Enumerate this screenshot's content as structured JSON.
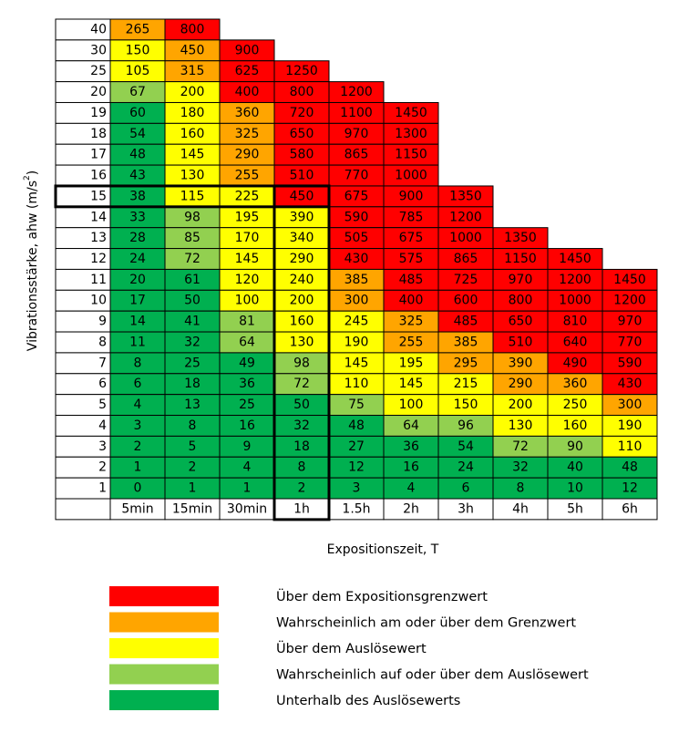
{
  "chart_data": {
    "type": "heatmap",
    "xlabel": "Expositionszeit, T",
    "ylabel_main": "Vibrationsstärke, ahw (m/s",
    "ylabel_sup": "2",
    "ylabel_close": ")",
    "x_categories": [
      "5min",
      "15min",
      "30min",
      "1h",
      "1.5h",
      "2h",
      "3h",
      "4h",
      "5h",
      "6h"
    ],
    "y_categories": [
      "40",
      "30",
      "25",
      "20",
      "19",
      "18",
      "17",
      "16",
      "15",
      "14",
      "13",
      "12",
      "11",
      "10",
      "9",
      "8",
      "7",
      "6",
      "5",
      "4",
      "3",
      "2",
      "1"
    ],
    "highlighted_row": "15",
    "highlighted_column": "1h",
    "colors": {
      "red": "#ff0000",
      "orange": "#ffa500",
      "yellow": "#ffff00",
      "lightgreen": "#92d050",
      "green": "#00b050"
    },
    "rows": [
      {
        "values": [
          "265",
          "800"
        ],
        "colors": [
          "orange",
          "red"
        ]
      },
      {
        "values": [
          "150",
          "450",
          "900"
        ],
        "colors": [
          "yellow",
          "orange",
          "red"
        ]
      },
      {
        "values": [
          "105",
          "315",
          "625",
          "1250"
        ],
        "colors": [
          "yellow",
          "orange",
          "red",
          "red"
        ]
      },
      {
        "values": [
          "67",
          "200",
          "400",
          "800",
          "1200"
        ],
        "colors": [
          "lightgreen",
          "yellow",
          "red",
          "red",
          "red"
        ]
      },
      {
        "values": [
          "60",
          "180",
          "360",
          "720",
          "1100",
          "1450"
        ],
        "colors": [
          "green",
          "yellow",
          "orange",
          "red",
          "red",
          "red"
        ]
      },
      {
        "values": [
          "54",
          "160",
          "325",
          "650",
          "970",
          "1300"
        ],
        "colors": [
          "green",
          "yellow",
          "orange",
          "red",
          "red",
          "red"
        ]
      },
      {
        "values": [
          "48",
          "145",
          "290",
          "580",
          "865",
          "1150"
        ],
        "colors": [
          "green",
          "yellow",
          "orange",
          "red",
          "red",
          "red"
        ]
      },
      {
        "values": [
          "43",
          "130",
          "255",
          "510",
          "770",
          "1000"
        ],
        "colors": [
          "green",
          "yellow",
          "orange",
          "red",
          "red",
          "red"
        ]
      },
      {
        "values": [
          "38",
          "115",
          "225",
          "450",
          "675",
          "900",
          "1350"
        ],
        "colors": [
          "green",
          "yellow",
          "yellow",
          "red",
          "red",
          "red",
          "red"
        ]
      },
      {
        "values": [
          "33",
          "98",
          "195",
          "390",
          "590",
          "785",
          "1200"
        ],
        "colors": [
          "green",
          "lightgreen",
          "yellow",
          "yellow",
          "red",
          "red",
          "red"
        ]
      },
      {
        "values": [
          "28",
          "85",
          "170",
          "340",
          "505",
          "675",
          "1000",
          "1350"
        ],
        "colors": [
          "green",
          "lightgreen",
          "yellow",
          "yellow",
          "red",
          "red",
          "red",
          "red"
        ]
      },
      {
        "values": [
          "24",
          "72",
          "145",
          "290",
          "430",
          "575",
          "865",
          "1150",
          "1450"
        ],
        "colors": [
          "green",
          "lightgreen",
          "yellow",
          "yellow",
          "red",
          "red",
          "red",
          "red",
          "red"
        ]
      },
      {
        "values": [
          "20",
          "61",
          "120",
          "240",
          "385",
          "485",
          "725",
          "970",
          "1200",
          "1450"
        ],
        "colors": [
          "green",
          "green",
          "yellow",
          "yellow",
          "orange",
          "red",
          "red",
          "red",
          "red",
          "red"
        ]
      },
      {
        "values": [
          "17",
          "50",
          "100",
          "200",
          "300",
          "400",
          "600",
          "800",
          "1000",
          "1200"
        ],
        "colors": [
          "green",
          "green",
          "yellow",
          "yellow",
          "orange",
          "red",
          "red",
          "red",
          "red",
          "red"
        ]
      },
      {
        "values": [
          "14",
          "41",
          "81",
          "160",
          "245",
          "325",
          "485",
          "650",
          "810",
          "970"
        ],
        "colors": [
          "green",
          "green",
          "lightgreen",
          "yellow",
          "yellow",
          "orange",
          "red",
          "red",
          "red",
          "red"
        ]
      },
      {
        "values": [
          "11",
          "32",
          "64",
          "130",
          "190",
          "255",
          "385",
          "510",
          "640",
          "770"
        ],
        "colors": [
          "green",
          "green",
          "lightgreen",
          "yellow",
          "yellow",
          "orange",
          "orange",
          "red",
          "red",
          "red"
        ]
      },
      {
        "values": [
          "8",
          "25",
          "49",
          "98",
          "145",
          "195",
          "295",
          "390",
          "490",
          "590"
        ],
        "colors": [
          "green",
          "green",
          "green",
          "lightgreen",
          "yellow",
          "yellow",
          "orange",
          "orange",
          "red",
          "red"
        ]
      },
      {
        "values": [
          "6",
          "18",
          "36",
          "72",
          "110",
          "145",
          "215",
          "290",
          "360",
          "430"
        ],
        "colors": [
          "green",
          "green",
          "green",
          "lightgreen",
          "yellow",
          "yellow",
          "yellow",
          "orange",
          "orange",
          "red"
        ]
      },
      {
        "values": [
          "4",
          "13",
          "25",
          "50",
          "75",
          "100",
          "150",
          "200",
          "250",
          "300"
        ],
        "colors": [
          "green",
          "green",
          "green",
          "green",
          "lightgreen",
          "yellow",
          "yellow",
          "yellow",
          "yellow",
          "orange"
        ]
      },
      {
        "values": [
          "3",
          "8",
          "16",
          "32",
          "48",
          "64",
          "96",
          "130",
          "160",
          "190"
        ],
        "colors": [
          "green",
          "green",
          "green",
          "green",
          "green",
          "lightgreen",
          "lightgreen",
          "yellow",
          "yellow",
          "yellow"
        ]
      },
      {
        "values": [
          "2",
          "5",
          "9",
          "18",
          "27",
          "36",
          "54",
          "72",
          "90",
          "110"
        ],
        "colors": [
          "green",
          "green",
          "green",
          "green",
          "green",
          "green",
          "green",
          "lightgreen",
          "lightgreen",
          "yellow"
        ]
      },
      {
        "values": [
          "1",
          "2",
          "4",
          "8",
          "12",
          "16",
          "24",
          "32",
          "40",
          "48"
        ],
        "colors": [
          "green",
          "green",
          "green",
          "green",
          "green",
          "green",
          "green",
          "green",
          "green",
          "green"
        ]
      },
      {
        "values": [
          "0",
          "1",
          "1",
          "2",
          "3",
          "4",
          "6",
          "8",
          "10",
          "12"
        ],
        "colors": [
          "green",
          "green",
          "green",
          "green",
          "green",
          "green",
          "green",
          "green",
          "green",
          "green"
        ]
      }
    ],
    "legend": [
      {
        "color": "red",
        "label": "Über dem Expositionsgrenzwert"
      },
      {
        "color": "orange",
        "label": "Wahrscheinlich am oder über dem Grenzwert"
      },
      {
        "color": "yellow",
        "label": "Über dem Auslösewert"
      },
      {
        "color": "lightgreen",
        "label": "Wahrscheinlich auf oder über dem Auslösewert"
      },
      {
        "color": "green",
        "label": "Unterhalb des Auslösewerts"
      }
    ]
  }
}
